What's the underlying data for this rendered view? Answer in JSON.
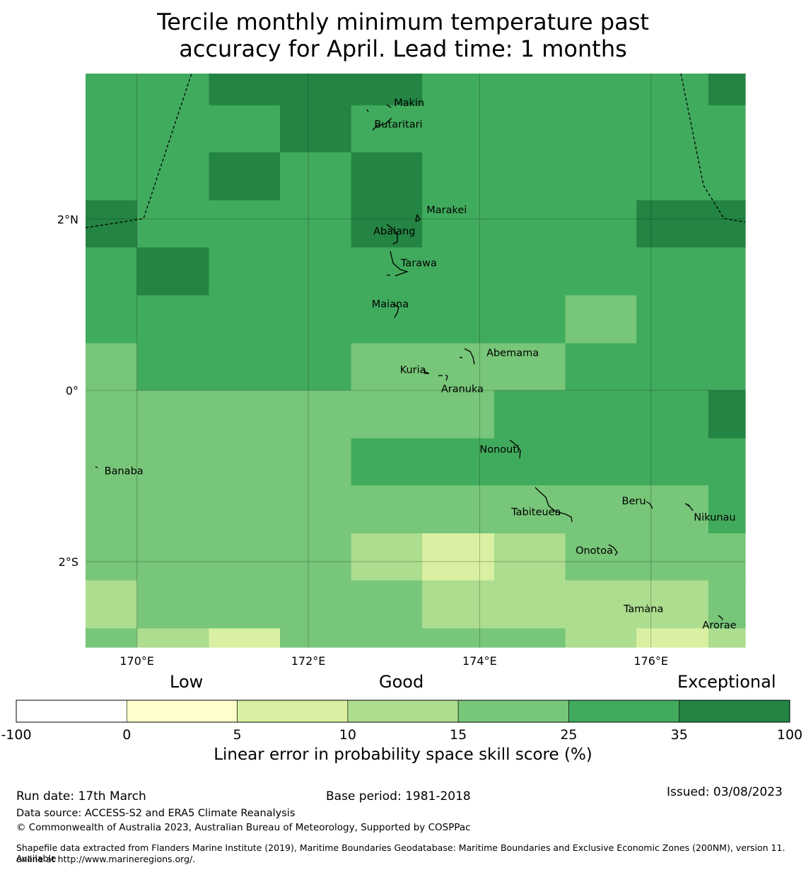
{
  "title": {
    "line1": "Tercile monthly minimum temperature past",
    "line2": "accuracy for April. Lead time: 1 months"
  },
  "colors": {
    "c0": "#ffffff",
    "c5": "#ffffcc",
    "c10": "#d9f0a3",
    "c15": "#addd8e",
    "c25": "#78c679",
    "c35": "#41ab5d",
    "c100": "#238443"
  },
  "map": {
    "lon_range": [
      169.4,
      177.1
    ],
    "lat_range": [
      -3.0,
      3.7
    ],
    "lon_ticks": [
      {
        "value": 170,
        "label": "170°E"
      },
      {
        "value": 172,
        "label": "172°E"
      },
      {
        "value": 174,
        "label": "174°E"
      },
      {
        "value": 176,
        "label": "176°E"
      }
    ],
    "lat_ticks": [
      {
        "value": 2,
        "label": "2°N"
      },
      {
        "value": 0,
        "label": "0°"
      },
      {
        "value": -2,
        "label": "2°S"
      }
    ],
    "grid_columns_lon": [
      169.4,
      170.0,
      170.84,
      171.67,
      172.5,
      173.33,
      174.17,
      175.0,
      175.83,
      176.67,
      177.1
    ],
    "grid_rows": [
      {
        "lat_top": 3.7,
        "lat_bottom": 3.33,
        "cells": [
          "c35",
          "c35",
          "c100",
          "c100",
          "c100",
          "c35",
          "c35",
          "c35",
          "c35",
          "c100"
        ]
      },
      {
        "lat_top": 3.33,
        "lat_bottom": 2.78,
        "cells": [
          "c35",
          "c35",
          "c35",
          "c100",
          "c35",
          "c35",
          "c35",
          "c35",
          "c35",
          "c35"
        ]
      },
      {
        "lat_top": 2.78,
        "lat_bottom": 2.22,
        "cells": [
          "c35",
          "c35",
          "c100",
          "c35",
          "c100",
          "c35",
          "c35",
          "c35",
          "c35",
          "c35"
        ]
      },
      {
        "lat_top": 2.22,
        "lat_bottom": 1.67,
        "cells": [
          "c100",
          "c35",
          "c35",
          "c35",
          "c100",
          "c35",
          "c35",
          "c35",
          "c100",
          "c100"
        ]
      },
      {
        "lat_top": 1.67,
        "lat_bottom": 1.11,
        "cells": [
          "c35",
          "c100",
          "c35",
          "c35",
          "c35",
          "c35",
          "c35",
          "c35",
          "c35",
          "c35"
        ]
      },
      {
        "lat_top": 1.11,
        "lat_bottom": 0.55,
        "cells": [
          "c35",
          "c35",
          "c35",
          "c35",
          "c35",
          "c35",
          "c35",
          "c25",
          "c35",
          "c35"
        ]
      },
      {
        "lat_top": 0.55,
        "lat_bottom": 0.0,
        "cells": [
          "c25",
          "c35",
          "c35",
          "c35",
          "c25",
          "c25",
          "c25",
          "c35",
          "c35",
          "c35"
        ]
      },
      {
        "lat_top": 0.0,
        "lat_bottom": -0.56,
        "cells": [
          "c25",
          "c25",
          "c25",
          "c25",
          "c25",
          "c25",
          "c35",
          "c35",
          "c35",
          "c100"
        ]
      },
      {
        "lat_top": -0.56,
        "lat_bottom": -1.11,
        "cells": [
          "c25",
          "c25",
          "c25",
          "c25",
          "c35",
          "c35",
          "c35",
          "c35",
          "c35",
          "c35"
        ]
      },
      {
        "lat_top": -1.11,
        "lat_bottom": -1.67,
        "cells": [
          "c25",
          "c25",
          "c25",
          "c25",
          "c25",
          "c25",
          "c25",
          "c25",
          "c25",
          "c35"
        ]
      },
      {
        "lat_top": -1.67,
        "lat_bottom": -2.22,
        "cells": [
          "c25",
          "c25",
          "c25",
          "c25",
          "c15",
          "c10",
          "c15",
          "c25",
          "c25",
          "c25"
        ]
      },
      {
        "lat_top": -2.22,
        "lat_bottom": -2.78,
        "cells": [
          "c15",
          "c25",
          "c25",
          "c25",
          "c25",
          "c15",
          "c15",
          "c15",
          "c15",
          "c25"
        ]
      },
      {
        "lat_top": -2.78,
        "lat_bottom": -3.0,
        "cells": [
          "c25",
          "c15",
          "c10",
          "c25",
          "c25",
          "c25",
          "c25",
          "c15",
          "c10",
          "c15"
        ]
      }
    ],
    "places": [
      {
        "name": "Makin",
        "lon": 173.0,
        "lat": 3.32
      },
      {
        "name": "Butaritari",
        "lon": 172.77,
        "lat": 3.07
      },
      {
        "name": "Marakei",
        "lon": 173.38,
        "lat": 2.07
      },
      {
        "name": "Abaiang",
        "lon": 172.76,
        "lat": 1.82
      },
      {
        "name": "Tarawa",
        "lon": 173.08,
        "lat": 1.45
      },
      {
        "name": "Maiana",
        "lon": 172.74,
        "lat": 0.97
      },
      {
        "name": "Abemama",
        "lon": 174.08,
        "lat": 0.4
      },
      {
        "name": "Kuria",
        "lon": 173.07,
        "lat": 0.2
      },
      {
        "name": "Aranuka",
        "lon": 173.55,
        "lat": -0.02
      },
      {
        "name": "Nonouti",
        "lon": 174.0,
        "lat": -0.73
      },
      {
        "name": "Banaba",
        "lon": 169.62,
        "lat": -0.98
      },
      {
        "name": "Beru",
        "lon": 175.66,
        "lat": -1.33
      },
      {
        "name": "Tabiteuea",
        "lon": 174.37,
        "lat": -1.46
      },
      {
        "name": "Nikunau",
        "lon": 176.5,
        "lat": -1.52
      },
      {
        "name": "Onotoa",
        "lon": 175.12,
        "lat": -1.91
      },
      {
        "name": "Tamana",
        "lon": 175.68,
        "lat": -2.59
      },
      {
        "name": "Arorae",
        "lon": 176.6,
        "lat": -2.78
      }
    ]
  },
  "legend": {
    "category_low": "Low",
    "category_good": "Good",
    "category_exceptional": "Exceptional",
    "ticks": [
      "-100",
      "0",
      "5",
      "10",
      "15",
      "25",
      "35",
      "100"
    ],
    "bins": [
      "c0",
      "c5",
      "c10",
      "c15",
      "c25",
      "c35",
      "c100"
    ],
    "label": "Linear error in probability space skill score (%)"
  },
  "footer": {
    "run_date": "Run date: 17th March",
    "base_period": "Base period: 1981-2018",
    "issued": "Issued: 03/08/2023",
    "data_source": "Data source: ACCESS-S2 and ERA5 Climate Reanalysis",
    "copyright": "© Commonwealth of Australia 2023, Australian Bureau of Meteorology, Supported by COSPPac",
    "shapefile_line1": "Shapefile data extracted from Flanders Marine Institute (2019), Maritime Boundaries Geodatabase: Maritime Boundaries and Exclusive Economic Zones (200NM), version 11. Available",
    "shapefile_line2": "online at http://www.marineregions.org/."
  }
}
